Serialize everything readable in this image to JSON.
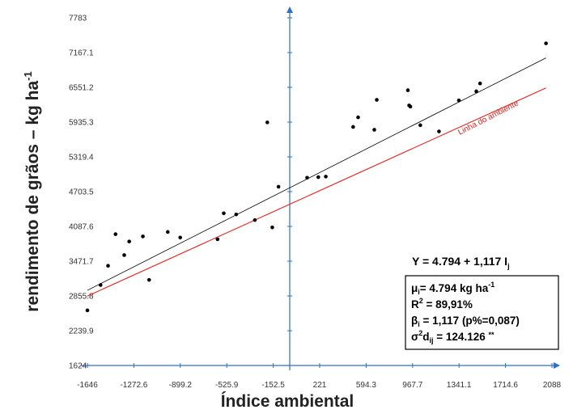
{
  "chart_data": {
    "type": "scatter",
    "xlabel": "Índice ambiental",
    "ylabel": "rendimento de grãos – kg ha-1",
    "x_ticks": [
      "-1646",
      "-1272.6",
      "-899.2",
      "-525.9",
      "-152.5",
      "221",
      "594.3",
      "967.7",
      "1341.1",
      "1714.6",
      "2088"
    ],
    "y_ticks": [
      "1624",
      "2239.9",
      "2855.8",
      "3471.7",
      "4087.6",
      "4703.5",
      "5319.4",
      "5935.3",
      "6551.2",
      "7167.1",
      "7783"
    ],
    "xlim": [
      -1646,
      2088
    ],
    "ylim": [
      1624,
      7783
    ],
    "points": [
      {
        "x": -1646,
        "y": 2600
      },
      {
        "x": -1540,
        "y": 3050
      },
      {
        "x": -1480,
        "y": 3390
      },
      {
        "x": -1420,
        "y": 3950
      },
      {
        "x": -1350,
        "y": 3580
      },
      {
        "x": -1310,
        "y": 3820
      },
      {
        "x": -1200,
        "y": 3910
      },
      {
        "x": -1150,
        "y": 3140
      },
      {
        "x": -1000,
        "y": 3990
      },
      {
        "x": -900,
        "y": 3890
      },
      {
        "x": -600,
        "y": 3860
      },
      {
        "x": -550,
        "y": 4320
      },
      {
        "x": -450,
        "y": 4300
      },
      {
        "x": -300,
        "y": 4200
      },
      {
        "x": -200,
        "y": 5930
      },
      {
        "x": -160,
        "y": 4070
      },
      {
        "x": -110,
        "y": 4790
      },
      {
        "x": 120,
        "y": 4950
      },
      {
        "x": 210,
        "y": 4960
      },
      {
        "x": 270,
        "y": 4970
      },
      {
        "x": 490,
        "y": 5850
      },
      {
        "x": 530,
        "y": 6020
      },
      {
        "x": 660,
        "y": 5800
      },
      {
        "x": 680,
        "y": 6330
      },
      {
        "x": 930,
        "y": 6500
      },
      {
        "x": 940,
        "y": 6230
      },
      {
        "x": 950,
        "y": 6210
      },
      {
        "x": 1030,
        "y": 5880
      },
      {
        "x": 1180,
        "y": 5770
      },
      {
        "x": 1340,
        "y": 6320
      },
      {
        "x": 1480,
        "y": 6480
      },
      {
        "x": 1510,
        "y": 6620
      },
      {
        "x": 2040,
        "y": 7330
      }
    ],
    "lines": [
      {
        "type": "regression",
        "color": "#000000",
        "intercept": 4794,
        "slope": 1.117
      },
      {
        "type": "environment",
        "name": "Linha do ambiente",
        "color": "#e8231f",
        "intercept": 4500,
        "slope": 1.0
      }
    ],
    "annotations": {
      "equation": "Y = 4.794 + 1,117 Ij",
      "stats": [
        "μi= 4.794 kg ha-1",
        "R2 = 89,91%",
        "βi = 1,117  (p%=0,087)",
        "σ2dij = 124.126 **"
      ]
    },
    "colors": {
      "axis": "#2e6fc4",
      "points": "#000000",
      "regression": "#000000",
      "environment": "#e8231f"
    }
  }
}
